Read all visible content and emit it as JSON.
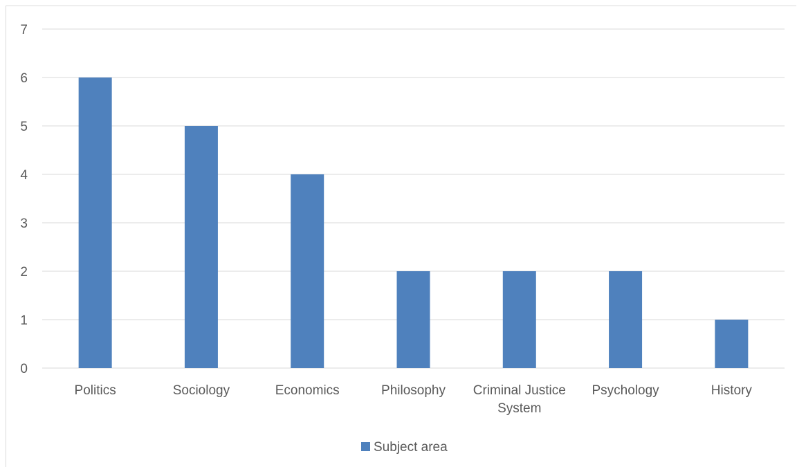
{
  "chart_data": {
    "type": "bar",
    "categories": [
      [
        "Politics"
      ],
      [
        "Sociology"
      ],
      [
        "Economics"
      ],
      [
        "Philosophy"
      ],
      [
        "Criminal Justice",
        "System"
      ],
      [
        "Psychology"
      ],
      [
        "History"
      ]
    ],
    "series": [
      {
        "name": "Subject area",
        "values": [
          6,
          5,
          4,
          2,
          2,
          2,
          1
        ],
        "color": "#4f81bd"
      }
    ],
    "ylim": [
      0,
      7
    ],
    "yticks": [
      0,
      1,
      2,
      3,
      4,
      5,
      6,
      7
    ],
    "grid": true,
    "gridColor": "#d9d9d9",
    "legend": "bottom-center",
    "title": "",
    "xlabel": "",
    "ylabel": ""
  }
}
